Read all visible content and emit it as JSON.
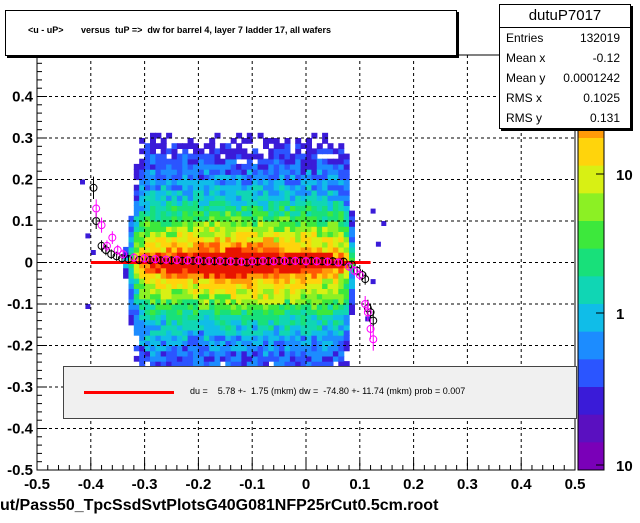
{
  "chart_data": {
    "type": "heatmap",
    "title": "<u - uP>       versus  tuP =>  dw for barrel 4, layer 7 ladder 17, all wafers",
    "xlim": [
      -0.5,
      0.5
    ],
    "ylim": [
      -0.5,
      0.5
    ],
    "x_ticks": [
      "-0.5",
      "-0.4",
      "-0.3",
      "-0.2",
      "-0.1",
      "0",
      "0.1",
      "0.2",
      "0.3",
      "0.4",
      "0.5"
    ],
    "y_ticks": [
      "-0.5",
      "-0.4",
      "-0.3",
      "-0.2",
      "-0.1",
      "0",
      "0.1",
      "0.2",
      "0.3",
      "0.4"
    ],
    "colorbar_ticks": [
      "1",
      "10",
      "10"
    ],
    "grid": true,
    "stats": {
      "name": "dutuP7017",
      "entries_label": "Entries",
      "entries": "132019",
      "mean_x_label": "Mean x",
      "mean_x": "-0.12",
      "mean_y_label": "Mean y",
      "mean_y": "0.0001242",
      "rms_x_label": "RMS x",
      "rms_x": "0.1025",
      "rms_y_label": "RMS y",
      "rms_y": "0.131"
    },
    "fit": {
      "text": "du =    5.78 +-  1.75 (mkm) dw =  -74.80 +- 11.74 (mkm) prob = 0.007",
      "color": "#ff0000",
      "x_range": [
        -0.4,
        0.12
      ],
      "y": 0.0
    },
    "profile_black": [
      [
        -0.395,
        0.18
      ],
      [
        -0.39,
        0.1
      ],
      [
        -0.38,
        0.04
      ],
      [
        -0.372,
        0.03
      ],
      [
        -0.362,
        0.02
      ],
      [
        -0.352,
        0.015
      ],
      [
        -0.342,
        0.01
      ],
      [
        -0.33,
        0.008
      ],
      [
        -0.31,
        0.006
      ],
      [
        -0.29,
        0.006
      ],
      [
        -0.27,
        0.005
      ],
      [
        -0.25,
        0.005
      ],
      [
        -0.23,
        0.004
      ],
      [
        -0.21,
        0.004
      ],
      [
        -0.19,
        0.003
      ],
      [
        -0.17,
        0.003
      ],
      [
        -0.15,
        0.002
      ],
      [
        -0.13,
        0.002
      ],
      [
        -0.11,
        0.0
      ],
      [
        -0.09,
        0.002
      ],
      [
        -0.07,
        0.003
      ],
      [
        -0.05,
        0.004
      ],
      [
        -0.03,
        0.003
      ],
      [
        -0.01,
        0.004
      ],
      [
        0.01,
        0.004
      ],
      [
        0.03,
        0.003
      ],
      [
        0.05,
        0.003
      ],
      [
        0.07,
        0.002
      ],
      [
        0.085,
        -0.005
      ],
      [
        0.095,
        -0.02
      ],
      [
        0.105,
        -0.03
      ],
      [
        0.11,
        -0.04
      ],
      [
        0.115,
        -0.11
      ],
      [
        0.12,
        -0.12
      ],
      [
        0.125,
        -0.14
      ]
    ],
    "profile_magenta": [
      [
        -0.39,
        0.13
      ],
      [
        -0.38,
        0.09
      ],
      [
        -0.37,
        0.04
      ],
      [
        -0.36,
        0.06
      ],
      [
        -0.35,
        0.03
      ],
      [
        -0.34,
        0.02
      ],
      [
        -0.32,
        0.012
      ],
      [
        -0.3,
        0.01
      ],
      [
        -0.28,
        0.008
      ],
      [
        -0.26,
        0.007
      ],
      [
        -0.24,
        0.006
      ],
      [
        -0.22,
        0.005
      ],
      [
        -0.2,
        0.005
      ],
      [
        -0.18,
        0.004
      ],
      [
        -0.16,
        0.004
      ],
      [
        -0.14,
        0.003
      ],
      [
        -0.12,
        0.002
      ],
      [
        -0.1,
        0.003
      ],
      [
        -0.08,
        0.004
      ],
      [
        -0.06,
        0.003
      ],
      [
        -0.04,
        0.004
      ],
      [
        -0.02,
        0.004
      ],
      [
        0.0,
        0.003
      ],
      [
        0.02,
        0.003
      ],
      [
        0.04,
        0.002
      ],
      [
        0.06,
        0.0
      ],
      [
        0.08,
        -0.01
      ],
      [
        0.09,
        -0.02
      ],
      [
        0.1,
        -0.03
      ],
      [
        0.11,
        -0.1
      ],
      [
        0.115,
        -0.12
      ],
      [
        0.12,
        -0.16
      ],
      [
        0.125,
        -0.185
      ]
    ]
  },
  "footer": "ut/Pass50_TpcSsdSvtPlotsG40G081NFP25rCut0.5cm.root"
}
